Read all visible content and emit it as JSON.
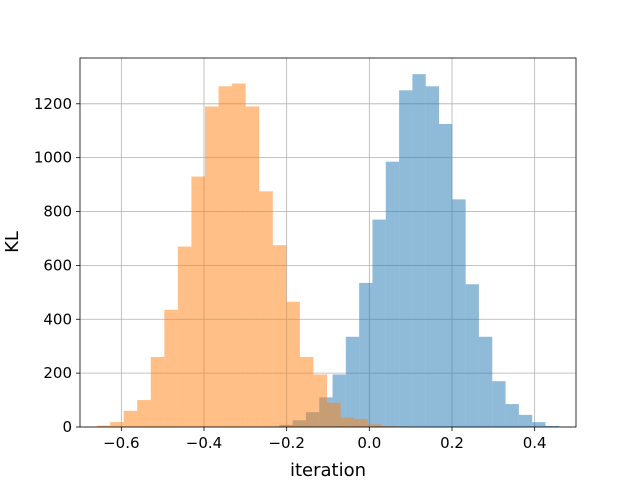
{
  "chart_data": {
    "type": "bar",
    "subtype": "overlaid-histogram",
    "title": "",
    "xlabel": "iteration",
    "ylabel": "KL",
    "xlim": [
      -0.7,
      0.5
    ],
    "ylim": [
      0,
      1370
    ],
    "xticks": [
      -0.6,
      -0.4,
      -0.2,
      0.0,
      0.2,
      0.4
    ],
    "xtick_labels": [
      "−0.6",
      "−0.4",
      "−0.2",
      "0.0",
      "0.2",
      "0.4"
    ],
    "yticks": [
      0,
      200,
      400,
      600,
      800,
      1000,
      1200
    ],
    "ytick_labels": [
      "0",
      "200",
      "400",
      "600",
      "800",
      "1000",
      "1200"
    ],
    "grid": true,
    "legend": "none",
    "series": [
      {
        "color": "#1f77b4",
        "alpha": 0.5,
        "bin_edges": [
          -0.25,
          -0.2178,
          -0.1856,
          -0.1534,
          -0.1212,
          -0.089,
          -0.0568,
          -0.0246,
          0.0076,
          0.0398,
          0.072,
          0.1042,
          0.1364,
          0.1686,
          0.2008,
          0.233,
          0.2652,
          0.2974,
          0.3296,
          0.3618,
          0.394,
          0.4262,
          0.4584
        ],
        "counts": [
          2,
          8,
          25,
          55,
          110,
          195,
          335,
          535,
          770,
          985,
          1250,
          1310,
          1265,
          1125,
          845,
          530,
          335,
          170,
          85,
          45,
          18,
          4
        ]
      },
      {
        "color": "#ff7f0e",
        "alpha": 0.5,
        "bin_edges": [
          -0.66,
          -0.6272,
          -0.5944,
          -0.5616,
          -0.5288,
          -0.496,
          -0.4632,
          -0.4304,
          -0.3976,
          -0.3648,
          -0.332,
          -0.2992,
          -0.2664,
          -0.2336,
          -0.2008,
          -0.168,
          -0.1352,
          -0.1024,
          -0.0696,
          -0.0368,
          -0.004,
          0.0288,
          0.0616,
          0.0944
        ],
        "counts": [
          5,
          18,
          60,
          100,
          260,
          435,
          670,
          930,
          1190,
          1265,
          1275,
          1190,
          875,
          675,
          465,
          260,
          195,
          90,
          35,
          30,
          10,
          3,
          1
        ]
      }
    ]
  }
}
